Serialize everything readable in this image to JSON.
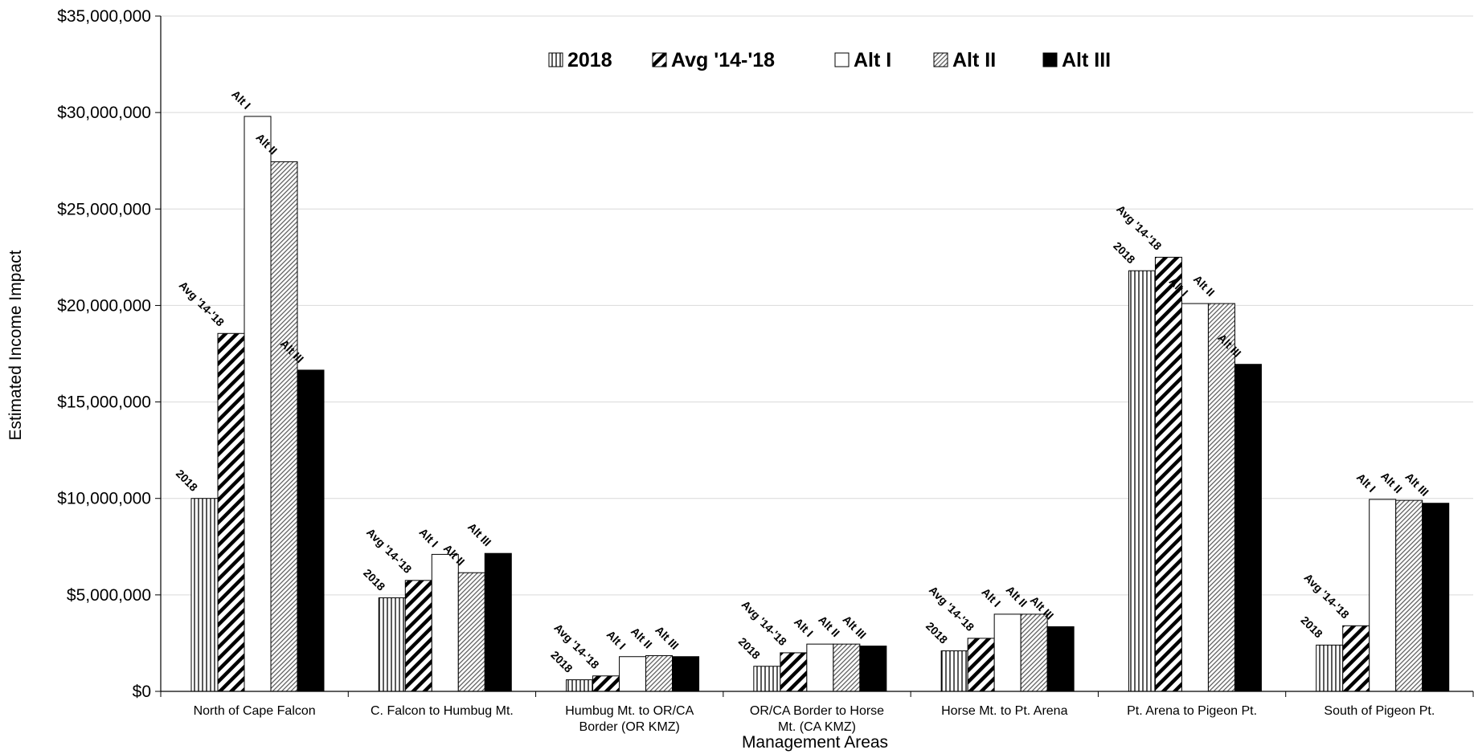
{
  "chart_data": {
    "type": "bar",
    "title": "",
    "xlabel": "Management Areas",
    "ylabel": "Estimated Income Impact",
    "ylim": [
      0,
      35000000
    ],
    "yticks": [
      0,
      5000000,
      10000000,
      15000000,
      20000000,
      25000000,
      30000000,
      35000000
    ],
    "ytick_labels": [
      "$0",
      "$5,000,000",
      "$10,000,000",
      "$15,000,000",
      "$20,000,000",
      "$25,000,000",
      "$30,000,000",
      "$35,000,000"
    ],
    "grid": true,
    "legend_position": "top",
    "categories": [
      [
        "North of Cape Falcon"
      ],
      [
        "C. Falcon to Humbug Mt."
      ],
      [
        "Humbug Mt. to OR/CA",
        "Border (OR KMZ)"
      ],
      [
        "OR/CA Border to Horse",
        "Mt. (CA KMZ)"
      ],
      [
        "Horse Mt. to Pt. Arena"
      ],
      [
        "Pt. Arena to Pigeon Pt."
      ],
      [
        "South of Pigeon Pt."
      ]
    ],
    "series": [
      {
        "name": "2018",
        "legend": "2018",
        "label": "2018",
        "pattern": "vertical",
        "values": [
          10000000,
          4850000,
          600000,
          1300000,
          2100000,
          21800000,
          2400000
        ]
      },
      {
        "name": "Avg '14-'18",
        "legend": "Avg '14-'18",
        "label": "Avg '14-'18",
        "pattern": "diagonal-bold",
        "values": [
          18550000,
          5750000,
          800000,
          2000000,
          2750000,
          22500000,
          3400000
        ]
      },
      {
        "name": "Alt I",
        "legend": "Alt I",
        "label": "Alt I",
        "pattern": "white",
        "values": [
          29800000,
          7100000,
          1800000,
          2450000,
          4000000,
          20100000,
          9950000
        ]
      },
      {
        "name": "Alt II",
        "legend": "Alt II",
        "label": "Alt II",
        "pattern": "diagonal-fine",
        "values": [
          27450000,
          6150000,
          1850000,
          2450000,
          4000000,
          20100000,
          9900000
        ]
      },
      {
        "name": "Alt III",
        "legend": "Alt III",
        "label": "Alt III",
        "pattern": "black",
        "values": [
          16650000,
          7150000,
          1800000,
          2350000,
          3350000,
          16950000,
          9750000
        ]
      }
    ]
  }
}
